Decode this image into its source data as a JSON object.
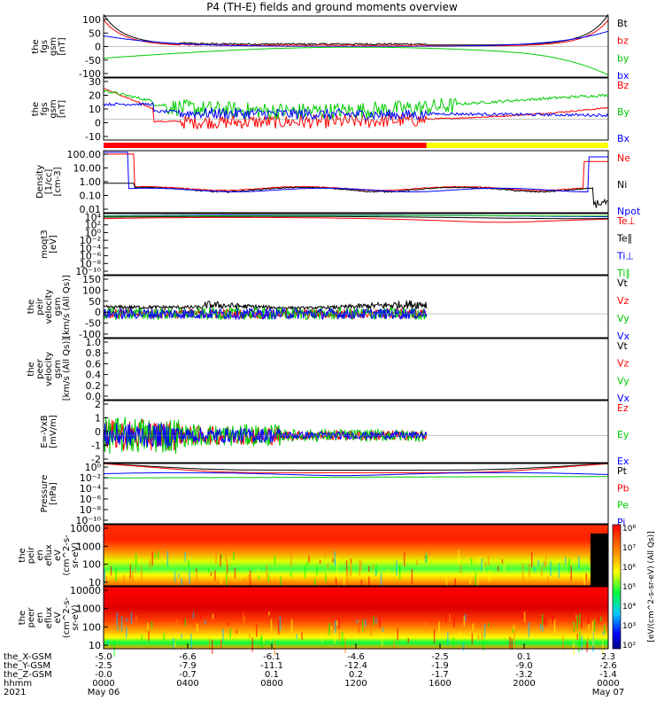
{
  "title": "P4 (TH-E) fields and ground moments overview",
  "panels": [
    {
      "key": "fgs_gsm",
      "ylabel": [
        "the",
        "fgs",
        "gsm",
        "[nT]"
      ],
      "ticks": [
        "100",
        "50",
        "0",
        "-50",
        "-100"
      ],
      "ylim": [
        -100,
        100
      ],
      "legend": [
        {
          "label": "Bt",
          "color": "#000000"
        },
        {
          "label": "bz",
          "color": "#ff0000"
        },
        {
          "label": "by",
          "color": "#00cc00"
        },
        {
          "label": "bx",
          "color": "#0000ff"
        }
      ]
    },
    {
      "key": "fgs_gsm_zoom",
      "ylabel": [
        "the",
        "fgs",
        "gsm",
        "[nT]"
      ],
      "ticks": [
        "30",
        "20",
        "10",
        "0",
        "-10"
      ],
      "ylim": [
        -15,
        30
      ],
      "legend": [
        {
          "label": "Bz",
          "color": "#ff0000"
        },
        {
          "label": "By",
          "color": "#00cc00"
        },
        {
          "label": "Bx",
          "color": "#0000ff"
        }
      ]
    },
    {
      "key": "density",
      "ylabel": [
        "Density",
        "[1/cc]",
        "[cm-3]"
      ],
      "ticks": [
        "100.00",
        "10.00",
        "1.00",
        "0.10",
        "0.01"
      ],
      "ylim": [
        0.01,
        100
      ],
      "log": true,
      "legend": [
        {
          "label": "Ne",
          "color": "#ff0000"
        },
        {
          "label": "Ni",
          "color": "#000000"
        },
        {
          "label": "Npot",
          "color": "#0000ff"
        }
      ]
    },
    {
      "key": "temperature",
      "ylabel": [
        "moqt3",
        "[eV]"
      ],
      "ticks": [
        "10⁴",
        "10²",
        "10⁰",
        "10⁻²",
        "10⁻⁴",
        "10⁻⁶",
        "10⁻⁸",
        "10⁻¹⁰"
      ],
      "ylim": [
        1e-10,
        10000.0
      ],
      "log": true,
      "legend": [
        {
          "label": "Te⊥",
          "color": "#ff0000"
        },
        {
          "label": "Te∥",
          "color": "#000000"
        },
        {
          "label": "Ti⊥",
          "color": "#0000ff"
        },
        {
          "label": "Ti∥",
          "color": "#00cc00"
        }
      ]
    },
    {
      "key": "peir_velocity",
      "ylabel": [
        "the",
        "peir",
        "velocity",
        "gsm",
        "[km/s (All Qs)]"
      ],
      "ticks": [
        "150",
        "100",
        "50",
        "0",
        "-50",
        "-100"
      ],
      "ylim": [
        -100,
        160
      ],
      "legend": [
        {
          "label": "Vt",
          "color": "#000000"
        },
        {
          "label": "Vz",
          "color": "#ff0000"
        },
        {
          "label": "Vy",
          "color": "#00cc00"
        },
        {
          "label": "Vx",
          "color": "#0000ff"
        }
      ]
    },
    {
      "key": "peer_velocity",
      "ylabel": [
        "the",
        "peer",
        "velocity",
        "gsm",
        "[km/s (All Qs)]"
      ],
      "ticks": [
        "1.0",
        "0.8",
        "0.6",
        "0.4",
        "0.2",
        "0.0"
      ],
      "ylim": [
        0,
        1
      ],
      "legend": [
        {
          "label": "Vt",
          "color": "#000000"
        },
        {
          "label": "Vz",
          "color": "#ff0000"
        },
        {
          "label": "Vy",
          "color": "#00cc00"
        },
        {
          "label": "Vx",
          "color": "#0000ff"
        }
      ]
    },
    {
      "key": "efield",
      "ylabel": [
        "E=-VxB",
        "[mV/m]"
      ],
      "ticks": [
        "2",
        "1",
        "0",
        "-1",
        "-2"
      ],
      "ylim": [
        -2.2,
        2.8
      ],
      "legend": [
        {
          "label": "Ez",
          "color": "#ff0000"
        },
        {
          "label": "Ey",
          "color": "#00cc00"
        },
        {
          "label": "Ex",
          "color": "#0000ff"
        }
      ]
    },
    {
      "key": "pressure",
      "ylabel": [
        "Pressure",
        "[nPa]"
      ],
      "ticks": [
        "10⁰",
        "10⁻²",
        "10⁻⁴",
        "10⁻⁶",
        "10⁻⁸",
        "10⁻¹⁰"
      ],
      "ylim": [
        1e-10,
        1
      ],
      "log": true,
      "legend": [
        {
          "label": "Pt",
          "color": "#000000"
        },
        {
          "label": "Pb",
          "color": "#ff0000"
        },
        {
          "label": "Pe",
          "color": "#00cc00"
        },
        {
          "label": "Pi",
          "color": "#0000ff"
        }
      ]
    },
    {
      "key": "peir_spec",
      "ylabel": [
        "the",
        "peir",
        "en",
        "eflux",
        "eV",
        "(cm^2-s-",
        "sr-eV)"
      ],
      "ticks": [
        "10000",
        "1000",
        "100",
        "10"
      ]
    },
    {
      "key": "peer_spec",
      "ylabel": [
        "the",
        "peer",
        "en",
        "eflux",
        "eV",
        "(cm^2-s-",
        "sr-eV)"
      ],
      "ticks": [
        "10000",
        "1000",
        "100",
        "10"
      ]
    }
  ],
  "colorbar": {
    "label": "[eV/(cm^2-s-sr-eV) (All Qs)]",
    "ticks": [
      "10⁸",
      "10⁷",
      "10⁶",
      "10⁵",
      "10⁴",
      "10³",
      "10²"
    ]
  },
  "mode_bar": [
    {
      "from": 0,
      "to": 0.64,
      "color": "#ff0000"
    },
    {
      "from": 0.64,
      "to": 1,
      "color": "#ffff00"
    }
  ],
  "time_axis": {
    "rows": [
      {
        "label": "the_X-GSM",
        "values": [
          "-5.0",
          "-6.6",
          "-6.1",
          "-4.6",
          "-2.5",
          "0.1",
          "2.3"
        ]
      },
      {
        "label": "the_Y-GSM",
        "values": [
          "-2.5",
          "-7.9",
          "-11.1",
          "-12.4",
          "-1.9",
          "-9.0",
          "-2.6"
        ]
      },
      {
        "label": "the_Z-GSM",
        "values": [
          "-0.0",
          "-0.7",
          "0.1",
          "0.2",
          "-1.7",
          "-3.2",
          "-1.4"
        ]
      },
      {
        "label": "hhmm",
        "values": [
          "0000",
          "0400",
          "0800",
          "1200",
          "1600",
          "2000",
          "0000"
        ]
      },
      {
        "label": "2021",
        "values": [
          "May 06",
          "",
          "",
          "",
          "",
          "",
          "May 07"
        ]
      }
    ]
  },
  "chart_data": {
    "type": "line",
    "title": "P4 (TH-E) fields and ground moments overview",
    "x": [
      "0000",
      "0400",
      "0800",
      "1200",
      "1600",
      "2000",
      "0000"
    ],
    "xlabel": "hhmm",
    "series": [
      {
        "name": "Bt",
        "values": [
          95,
          28,
          8,
          5,
          4,
          12,
          95
        ]
      },
      {
        "name": "bz",
        "values": [
          90,
          22,
          3,
          1,
          2,
          8,
          70
        ]
      },
      {
        "name": "by",
        "values": [
          -40,
          -22,
          -8,
          -5,
          5,
          -10,
          -95
        ]
      },
      {
        "name": "bx",
        "values": [
          30,
          10,
          0,
          0,
          2,
          5,
          60
        ]
      }
    ]
  }
}
